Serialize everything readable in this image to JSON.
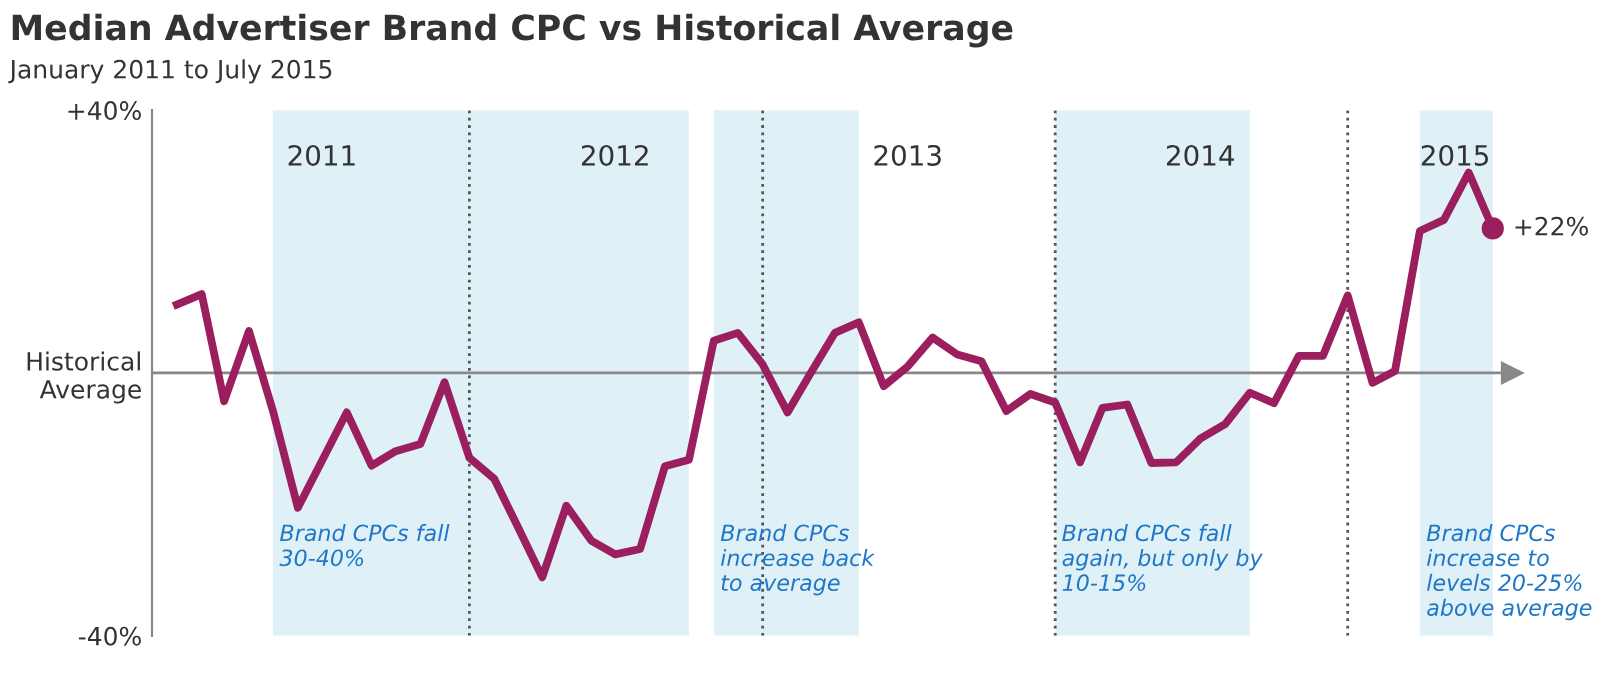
{
  "chart_data": {
    "type": "line",
    "title": "Median Advertiser Brand CPC vs Historical Average",
    "subtitle": "January 2011 to July 2015",
    "x": [
      "2011-01",
      "2011-02",
      "2011-03",
      "2011-04",
      "2011-05",
      "2011-06",
      "2011-07",
      "2011-08",
      "2011-09",
      "2011-10",
      "2011-11",
      "2011-12",
      "2012-01",
      "2012-02",
      "2012-03",
      "2012-04",
      "2012-05",
      "2012-06",
      "2012-07",
      "2012-08",
      "2012-09",
      "2012-10",
      "2012-11",
      "2012-12",
      "2013-01",
      "2013-02",
      "2013-03",
      "2013-04",
      "2013-05",
      "2013-06",
      "2013-07",
      "2013-08",
      "2013-09",
      "2013-10",
      "2013-11",
      "2013-12",
      "2014-01",
      "2014-02",
      "2014-03",
      "2014-04",
      "2014-05",
      "2014-06",
      "2014-07",
      "2014-08",
      "2014-09",
      "2014-10",
      "2014-11",
      "2014-12",
      "2015-01",
      "2015-02",
      "2015-03",
      "2015-04",
      "2015-05",
      "2015-06",
      "2015-07"
    ],
    "series": [
      {
        "color": "#9b1f5e",
        "values": [
          10.4,
          12,
          -4.3,
          6.4,
          -5.8,
          -20.5,
          -13.4,
          -6,
          -14.1,
          -11.9,
          -10.8,
          -1.4,
          -12.9,
          -16.1,
          -23.3,
          -31.1,
          -20.2,
          -25.5,
          -27.6,
          -26.8,
          -14.2,
          -13.2,
          4.9,
          6.1,
          1.3,
          -6,
          -0.2,
          6.1,
          7.7,
          -2,
          1,
          5.4,
          2.8,
          1.8,
          -5.8,
          -3.2,
          -4.5,
          -13.6,
          -5.3,
          -4.8,
          -13.7,
          -13.6,
          -10,
          -7.8,
          -3,
          -4.6,
          2.6,
          2.6,
          11.8,
          -1.5,
          0.3,
          21.6,
          23.3,
          30.5,
          22
        ],
        "value_labels": [
          null,
          null,
          null,
          null,
          null,
          null,
          null,
          null,
          null,
          null,
          null,
          null,
          null,
          null,
          null,
          null,
          null,
          null,
          null,
          null,
          null,
          null,
          null,
          null,
          null,
          null,
          null,
          null,
          null,
          null,
          null,
          null,
          null,
          null,
          null,
          null,
          null,
          null,
          null,
          null,
          null,
          null,
          null,
          null,
          null,
          null,
          null,
          null,
          null,
          null,
          null,
          null,
          null,
          null,
          "+22%"
        ]
      }
    ],
    "xlim": [
      "2010-12-01",
      "2015-07-25"
    ],
    "ylim": [
      -40,
      40
    ],
    "yticks": [
      {
        "value": 40,
        "label": "+40%"
      },
      {
        "value": 0,
        "label": "Historical\nAverage"
      },
      {
        "value": -40,
        "label": "-40%"
      }
    ],
    "xticks": [
      {
        "value": "2011-07",
        "label": "2011"
      },
      {
        "value": "2012-07",
        "label": "2012"
      },
      {
        "value": "2013-07",
        "label": "2013"
      },
      {
        "value": "2014-07",
        "label": "2014"
      },
      {
        "value": "2015-05-15",
        "label": "2015"
      }
    ],
    "grid": false,
    "legend": false,
    "line_style": "solid",
    "bands": [
      {
        "axis": "x",
        "from": "2011-05",
        "to": "2012-10",
        "label": "Brand CPCs fall\n30-40%",
        "color": "#dff0f6"
      },
      {
        "axis": "x",
        "from": "2012-11",
        "to": "2013-05",
        "label": "Brand CPCs\nincrease back\nto average",
        "color": "#dff0f6"
      },
      {
        "axis": "x",
        "from": "2014-01",
        "to": "2014-09",
        "label": "Brand CPCs fall\nagain, but only by\n10-15%",
        "color": "#dff0f6"
      },
      {
        "axis": "x",
        "from": "2015-04",
        "to": "2015-07",
        "label": "Brand CPCs\nincrease to\nlevels 20-25%\nabove average",
        "color": "#dff0f6"
      }
    ],
    "ref_lines": [
      {
        "axis": "x",
        "value": "2012-01",
        "line_style": "dotted",
        "color": "#555555"
      },
      {
        "axis": "x",
        "value": "2013-01",
        "line_style": "dotted",
        "color": "#555555"
      },
      {
        "axis": "x",
        "value": "2014-01",
        "line_style": "dotted",
        "color": "#555555"
      },
      {
        "axis": "x",
        "value": "2015-01",
        "line_style": "dotted",
        "color": "#555555"
      },
      {
        "axis": "y",
        "value": 0,
        "line_style": "solid",
        "color": "#888888"
      }
    ]
  }
}
